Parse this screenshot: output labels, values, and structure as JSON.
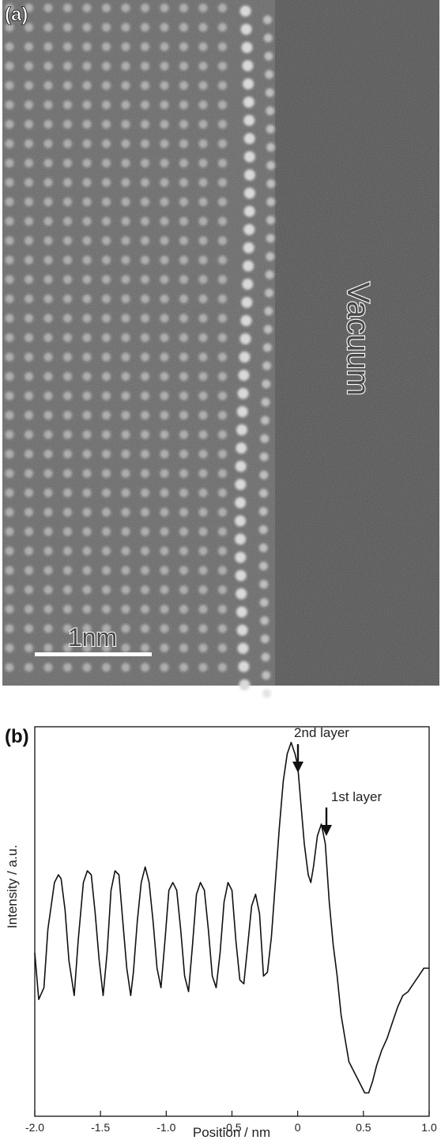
{
  "panel_a": {
    "label": "(a)",
    "region_label": "Vacuum",
    "scale_bar_label": "1nm",
    "colors": {
      "crystal": "#5e5e5e",
      "vacuum": "#4a4a4a",
      "atom": "#d9d9d9"
    }
  },
  "panel_b": {
    "label": "(b)",
    "annotations": [
      "2nd layer",
      "1st layer"
    ]
  },
  "chart_data": {
    "type": "line",
    "title": "",
    "xlabel": "Position / nm",
    "ylabel": "Intensity / a.u.",
    "xlim": [
      -2.0,
      1.0
    ],
    "ylim": [
      0,
      1
    ],
    "xticks": [
      "-2.0",
      "-1.5",
      "-1.0",
      "-0.5",
      "0",
      "0.5",
      "1.0"
    ],
    "yticks_shown": false,
    "grid": false,
    "legend": "none",
    "series": [
      {
        "x": [
          -2.0,
          -1.97,
          -1.93,
          -1.9,
          -1.85,
          -1.82,
          -1.8,
          -1.77,
          -1.74,
          -1.7,
          -1.67,
          -1.63,
          -1.6,
          -1.57,
          -1.54,
          -1.51,
          -1.48,
          -1.45,
          -1.42,
          -1.39,
          -1.36,
          -1.33,
          -1.3,
          -1.27,
          -1.25,
          -1.22,
          -1.19,
          -1.16,
          -1.13,
          -1.1,
          -1.07,
          -1.04,
          -1.01,
          -0.98,
          -0.95,
          -0.92,
          -0.89,
          -0.86,
          -0.83,
          -0.8,
          -0.77,
          -0.74,
          -0.71,
          -0.68,
          -0.65,
          -0.62,
          -0.59,
          -0.56,
          -0.53,
          -0.5,
          -0.47,
          -0.44,
          -0.41,
          -0.38,
          -0.35,
          -0.32,
          -0.29,
          -0.26,
          -0.23,
          -0.2,
          -0.17,
          -0.14,
          -0.11,
          -0.08,
          -0.05,
          -0.02,
          0.0,
          0.02,
          0.05,
          0.08,
          0.1,
          0.12,
          0.15,
          0.18,
          0.21,
          0.24,
          0.27,
          0.3,
          0.33,
          0.36,
          0.39,
          0.42,
          0.45,
          0.48,
          0.51,
          0.54,
          0.57,
          0.6,
          0.64,
          0.68,
          0.72,
          0.76,
          0.8,
          0.84,
          0.88,
          0.92,
          0.96,
          1.0
        ],
        "y": [
          0.42,
          0.3,
          0.33,
          0.48,
          0.6,
          0.62,
          0.61,
          0.53,
          0.4,
          0.31,
          0.45,
          0.6,
          0.63,
          0.62,
          0.52,
          0.4,
          0.31,
          0.42,
          0.58,
          0.63,
          0.62,
          0.5,
          0.38,
          0.31,
          0.37,
          0.5,
          0.6,
          0.64,
          0.6,
          0.5,
          0.38,
          0.33,
          0.45,
          0.58,
          0.6,
          0.58,
          0.48,
          0.36,
          0.32,
          0.44,
          0.57,
          0.6,
          0.58,
          0.48,
          0.36,
          0.33,
          0.42,
          0.55,
          0.6,
          0.58,
          0.45,
          0.35,
          0.34,
          0.44,
          0.54,
          0.57,
          0.52,
          0.36,
          0.37,
          0.46,
          0.6,
          0.74,
          0.86,
          0.93,
          0.96,
          0.93,
          0.9,
          0.82,
          0.7,
          0.62,
          0.6,
          0.64,
          0.72,
          0.75,
          0.7,
          0.55,
          0.44,
          0.36,
          0.26,
          0.2,
          0.14,
          0.12,
          0.1,
          0.08,
          0.06,
          0.06,
          0.09,
          0.13,
          0.17,
          0.2,
          0.24,
          0.28,
          0.31,
          0.32,
          0.34,
          0.36,
          0.38,
          0.38
        ]
      }
    ]
  }
}
